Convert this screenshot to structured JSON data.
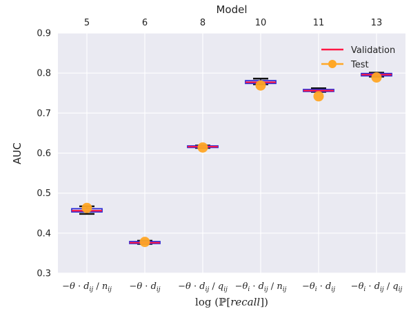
{
  "chart_data": {
    "type": "box",
    "top_axis_label": "Model",
    "top_tick_labels": [
      "5",
      "6",
      "8",
      "10",
      "11",
      "13"
    ],
    "bottom_tick_labels": [
      "−θ · d_ij / n_ij",
      "−θ · d_ij",
      "−θ · d_ij / q_ij",
      "−θ_i · d_ij / n_ij",
      "−θ_i · d_ij",
      "−θ_i · d_ij / q_ij"
    ],
    "xlabel": "log (ℙ[recall])",
    "ylabel": "AUC",
    "ylim": [
      0.3,
      0.9
    ],
    "yticks": [
      0.3,
      0.4,
      0.5,
      0.6,
      0.7,
      0.8,
      0.9
    ],
    "grid": true,
    "legend": {
      "placement": "top-right",
      "entries": [
        "Validation",
        "Test"
      ]
    },
    "validation_boxes": [
      {
        "q1": 0.453,
        "median": 0.456,
        "q3": 0.461,
        "whisker_low": 0.448,
        "whisker_high": 0.467
      },
      {
        "q1": 0.374,
        "median": 0.376,
        "q3": 0.379,
        "whisker_low": 0.373,
        "whisker_high": 0.381
      },
      {
        "q1": 0.614,
        "median": 0.616,
        "q3": 0.618,
        "whisker_low": 0.613,
        "whisker_high": 0.619
      },
      {
        "q1": 0.774,
        "median": 0.777,
        "q3": 0.781,
        "whisker_low": 0.772,
        "whisker_high": 0.786
      },
      {
        "q1": 0.754,
        "median": 0.756,
        "q3": 0.759,
        "whisker_low": 0.753,
        "whisker_high": 0.762
      },
      {
        "q1": 0.793,
        "median": 0.796,
        "q3": 0.799,
        "whisker_low": 0.791,
        "whisker_high": 0.801
      }
    ],
    "test_values": [
      0.463,
      0.378,
      0.614,
      0.769,
      0.742,
      0.789
    ],
    "colors": {
      "background": "#eaeaf2",
      "grid": "#ffffff",
      "box_edge": "#2b2bd6",
      "median": "#ff1744",
      "whisker": "#111111",
      "test_marker": "#ffa726"
    }
  }
}
